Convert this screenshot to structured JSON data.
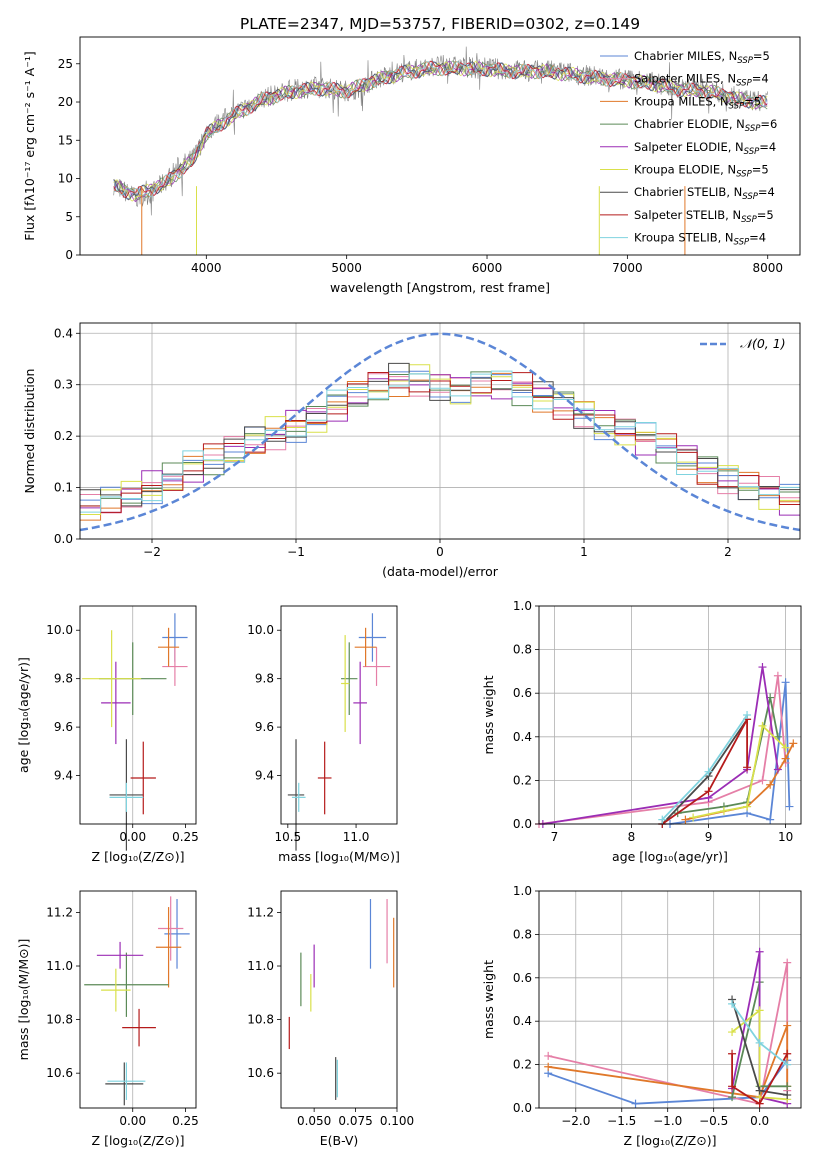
{
  "figure": {
    "title": "PLATE=2347, MJD=53757, FIBERID=0302, z=0.149"
  },
  "models": [
    {
      "name": "Chabrier MILES",
      "nssp": "5",
      "color": "#5b86d6"
    },
    {
      "name": "Salpeter MILES",
      "nssp": "4",
      "color": "#e57fa7"
    },
    {
      "name": "Kroupa MILES",
      "nssp": "5",
      "color": "#e0782a"
    },
    {
      "name": "Chabrier ELODIE",
      "nssp": "6",
      "color": "#5b8a57"
    },
    {
      "name": "Salpeter ELODIE",
      "nssp": "4",
      "color": "#9b2db5"
    },
    {
      "name": "Kroupa ELODIE",
      "nssp": "5",
      "color": "#d9e04a"
    },
    {
      "name": "Chabrier STELIB",
      "nssp": "4",
      "color": "#4a4a4a"
    },
    {
      "name": "Salpeter STELIB",
      "nssp": "5",
      "color": "#b51b1b"
    },
    {
      "name": "Kroupa STELIB",
      "nssp": "4",
      "color": "#7fd3df"
    }
  ],
  "chart_data": [
    {
      "id": "spectrum",
      "type": "line",
      "xlabel": "wavelength [Angstrom, rest frame]",
      "ylabel": "Flux [fλ10⁻¹⁷ erg cm⁻² s⁻¹ A⁻¹]",
      "xlim": [
        3100,
        8230
      ],
      "ylim": [
        0,
        28.5
      ],
      "xticks": [
        "4000",
        "5000",
        "6000",
        "7000",
        "8000"
      ],
      "yticks": [
        "0",
        "5",
        "10",
        "15",
        "20",
        "25"
      ],
      "series": [
        {
          "name": "data",
          "color": "#808080",
          "x": [
            3340,
            3400,
            3500,
            3600,
            3700,
            3800,
            3900,
            3950,
            4000,
            4100,
            4200,
            4300,
            4400,
            4500,
            4600,
            4700,
            4800,
            4900,
            5000,
            5100,
            5200,
            5300,
            5400,
            5500,
            5600,
            5700,
            5800,
            5900,
            6000,
            6100,
            6200,
            6300,
            6400,
            6500,
            6600,
            6700,
            6800,
            6900,
            7000,
            7100,
            7200,
            7300,
            7400,
            7500,
            7600,
            7700,
            7800,
            7900,
            8000
          ],
          "y": [
            9.2,
            8.5,
            7.5,
            8.0,
            9.5,
            11.5,
            12.5,
            14.0,
            16.0,
            17.5,
            18.5,
            19.5,
            20.5,
            21.0,
            21.5,
            21.8,
            22.0,
            21.7,
            21.5,
            21.8,
            23.0,
            23.5,
            24.0,
            24.3,
            24.6,
            24.8,
            24.6,
            24.4,
            24.5,
            24.3,
            24.2,
            24.0,
            24.2,
            24.0,
            23.8,
            23.5,
            23.3,
            23.0,
            23.0,
            22.8,
            22.5,
            22.0,
            21.8,
            21.8,
            21.5,
            21.0,
            20.5,
            20.2,
            20.0
          ]
        },
        {
          "name": "model",
          "color": "#7fd3df",
          "x": [
            3340,
            3500,
            3700,
            3900,
            4000,
            4200,
            4400,
            4600,
            4800,
            5000,
            5200,
            5400,
            5600,
            5800,
            6000,
            6200,
            6400,
            6600,
            6800,
            7000,
            7200,
            7400,
            7600,
            7800,
            8000
          ],
          "y": [
            9.0,
            7.8,
            9.3,
            12.3,
            15.8,
            18.3,
            20.3,
            21.3,
            21.8,
            21.4,
            22.8,
            23.8,
            24.4,
            24.4,
            24.3,
            24.0,
            24.0,
            23.6,
            23.1,
            22.8,
            22.3,
            21.6,
            21.3,
            20.3,
            19.8
          ]
        }
      ]
    },
    {
      "id": "residuals",
      "type": "area",
      "xlabel": "(data-model)/error",
      "ylabel": "Normed distribution",
      "xlim": [
        -2.5,
        2.5
      ],
      "ylim": [
        0,
        0.42
      ],
      "xticks": [
        "−2",
        "−1",
        "0",
        "1",
        "2"
      ],
      "yticks": [
        "0.0",
        "0.1",
        "0.2",
        "0.3",
        "0.4"
      ],
      "grid": true,
      "legend": "top-right",
      "series": [
        {
          "name": "𝒩(0, 1)",
          "style": "dashed",
          "color": "#5b86d6"
        },
        {
          "name": "residual histogram",
          "x": [
            -2.5,
            -2.3,
            -2.1,
            -1.9,
            -1.7,
            -1.5,
            -1.3,
            -1.1,
            -0.9,
            -0.7,
            -0.5,
            -0.3,
            -0.1,
            0.1,
            0.3,
            0.5,
            0.7,
            0.9,
            1.1,
            1.3,
            1.5,
            1.7,
            1.9,
            2.1,
            2.3,
            2.5
          ],
          "y": [
            0.06,
            0.07,
            0.09,
            0.11,
            0.14,
            0.16,
            0.19,
            0.21,
            0.23,
            0.26,
            0.29,
            0.31,
            0.31,
            0.29,
            0.3,
            0.3,
            0.28,
            0.26,
            0.23,
            0.21,
            0.19,
            0.16,
            0.13,
            0.11,
            0.09,
            0.07
          ]
        }
      ]
    },
    {
      "id": "age-vs-Z",
      "type": "scatter",
      "xlabel": "Z [log₁₀(Z/Z⊙)]",
      "ylabel": "age  [log₁₀(age/yr)]",
      "xticks": [
        "0.00",
        "0.25"
      ],
      "yticks": [
        "9.4",
        "9.6",
        "9.8",
        "10.0"
      ],
      "xlim": [
        -0.25,
        0.3
      ],
      "ylim": [
        9.2,
        10.1
      ],
      "points": [
        {
          "x": 0.2,
          "y": 9.97,
          "xerr": 0.06,
          "yerr": 0.1
        },
        {
          "x": 0.2,
          "y": 9.85,
          "xerr": 0.06,
          "yerr": 0.08
        },
        {
          "x": 0.17,
          "y": 9.93,
          "xerr": 0.05,
          "yerr": 0.08
        },
        {
          "x": 0.0,
          "y": 9.8,
          "xerr": 0.16,
          "yerr": 0.15
        },
        {
          "x": -0.08,
          "y": 9.7,
          "xerr": 0.07,
          "yerr": 0.17
        },
        {
          "x": -0.1,
          "y": 9.8,
          "xerr": 0.14,
          "yerr": 0.2
        },
        {
          "x": -0.03,
          "y": 9.32,
          "xerr": 0.08,
          "yerr": 0.23
        },
        {
          "x": 0.05,
          "y": 9.39,
          "xerr": 0.06,
          "yerr": 0.15
        },
        {
          "x": -0.03,
          "y": 9.31,
          "xerr": 0.08,
          "yerr": 0.06
        }
      ]
    },
    {
      "id": "age-vs-mass",
      "type": "scatter",
      "xlabel": "mass [log₁₀(M/M⊙)]",
      "ylabel": "",
      "xticks": [
        "10.5",
        "11.0"
      ],
      "yticks": [
        "9.4",
        "9.6",
        "9.8",
        "10.0"
      ],
      "xlim": [
        10.45,
        11.3
      ],
      "ylim": [
        9.2,
        10.1
      ],
      "points": [
        {
          "x": 11.12,
          "y": 9.97,
          "xerr": 0.1,
          "yerr": 0.1
        },
        {
          "x": 11.15,
          "y": 9.85,
          "xerr": 0.1,
          "yerr": 0.08
        },
        {
          "x": 11.07,
          "y": 9.93,
          "xerr": 0.08,
          "yerr": 0.08
        },
        {
          "x": 10.95,
          "y": 9.8,
          "xerr": 0.06,
          "yerr": 0.15
        },
        {
          "x": 11.03,
          "y": 9.7,
          "xerr": 0.05,
          "yerr": 0.17
        },
        {
          "x": 10.92,
          "y": 9.78,
          "xerr": 0.03,
          "yerr": 0.2
        },
        {
          "x": 10.56,
          "y": 9.32,
          "xerr": 0.06,
          "yerr": 0.23
        },
        {
          "x": 10.77,
          "y": 9.39,
          "xerr": 0.05,
          "yerr": 0.15
        },
        {
          "x": 10.58,
          "y": 9.31,
          "xerr": 0.05,
          "yerr": 0.06
        }
      ]
    },
    {
      "id": "weight-vs-age",
      "type": "line",
      "xlabel": "age  [log₁₀(age/yr)]",
      "ylabel": "mass weight",
      "xticks": [
        "7",
        "8",
        "9",
        "10"
      ],
      "yticks": [
        "0.0",
        "0.2",
        "0.4",
        "0.6",
        "0.8",
        "1.0"
      ],
      "xlim": [
        6.8,
        10.2
      ],
      "ylim": [
        0,
        1
      ],
      "grid": true,
      "series": [
        {
          "x": [
            8.5,
            9.5,
            9.8,
            10.0,
            10.05
          ],
          "y": [
            0.0,
            0.05,
            0.02,
            0.65,
            0.08
          ]
        },
        {
          "x": [
            6.8,
            9.0,
            9.7,
            9.9,
            10.0
          ],
          "y": [
            0.0,
            0.1,
            0.2,
            0.68,
            0.28
          ]
        },
        {
          "x": [
            8.7,
            9.5,
            9.8,
            10.0,
            10.1
          ],
          "y": [
            0.02,
            0.08,
            0.18,
            0.3,
            0.37
          ]
        },
        {
          "x": [
            8.6,
            9.2,
            9.5,
            9.8,
            9.9
          ],
          "y": [
            0.05,
            0.08,
            0.1,
            0.58,
            0.4
          ]
        },
        {
          "x": [
            6.85,
            9.0,
            9.5,
            9.7,
            9.9
          ],
          "y": [
            0.0,
            0.12,
            0.25,
            0.72,
            0.25
          ]
        },
        {
          "x": [
            8.8,
            9.2,
            9.5,
            9.7,
            10.0
          ],
          "y": [
            0.03,
            0.06,
            0.08,
            0.45,
            0.35
          ]
        },
        {
          "x": [
            8.4,
            9.0,
            9.5
          ],
          "y": [
            0.0,
            0.22,
            0.48
          ]
        },
        {
          "x": [
            8.4,
            9.0,
            9.5,
            9.5
          ],
          "y": [
            0.0,
            0.15,
            0.48,
            0.26
          ]
        },
        {
          "x": [
            8.4,
            9.0,
            9.5
          ],
          "y": [
            0.02,
            0.24,
            0.5
          ]
        }
      ]
    },
    {
      "id": "mass-vs-Z",
      "type": "scatter",
      "xlabel": "Z [log₁₀(Z/Z⊙)]",
      "ylabel": "mass [log₁₀(M/M⊙)]",
      "xticks": [
        "0.00",
        "0.25"
      ],
      "yticks": [
        "10.6",
        "10.8",
        "11.0",
        "11.2"
      ],
      "xlim": [
        -0.25,
        0.3
      ],
      "ylim": [
        10.47,
        11.28
      ],
      "points": [
        {
          "x": 0.21,
          "y": 11.12,
          "xerr": 0.06,
          "yerr": 0.13
        },
        {
          "x": 0.18,
          "y": 11.14,
          "xerr": 0.06,
          "yerr": 0.12
        },
        {
          "x": 0.17,
          "y": 11.07,
          "xerr": 0.06,
          "yerr": 0.15
        },
        {
          "x": -0.03,
          "y": 10.93,
          "xerr": 0.2,
          "yerr": 0.12
        },
        {
          "x": -0.06,
          "y": 11.04,
          "xerr": 0.11,
          "yerr": 0.05
        },
        {
          "x": -0.08,
          "y": 10.91,
          "xerr": 0.07,
          "yerr": 0.08
        },
        {
          "x": -0.04,
          "y": 10.56,
          "xerr": 0.09,
          "yerr": 0.08
        },
        {
          "x": 0.03,
          "y": 10.77,
          "xerr": 0.08,
          "yerr": 0.07
        },
        {
          "x": -0.03,
          "y": 10.57,
          "xerr": 0.09,
          "yerr": 0.07
        }
      ]
    },
    {
      "id": "mass-vs-EBV",
      "type": "scatter",
      "xlabel": "E(B-V)",
      "ylabel": "",
      "xticks": [
        "0.050",
        "0.075",
        "0.100"
      ],
      "yticks": [
        "10.6",
        "10.8",
        "11.0",
        "11.2"
      ],
      "xlim": [
        0.03,
        0.1
      ],
      "ylim": [
        10.47,
        11.28
      ],
      "points": [
        {
          "x": 0.084,
          "y": 11.12,
          "yerr": 0.13
        },
        {
          "x": 0.094,
          "y": 11.13,
          "yerr": 0.12
        },
        {
          "x": 0.098,
          "y": 11.05,
          "yerr": 0.13
        },
        {
          "x": 0.042,
          "y": 10.95,
          "yerr": 0.1
        },
        {
          "x": 0.05,
          "y": 11.0,
          "yerr": 0.08
        },
        {
          "x": 0.048,
          "y": 10.9,
          "yerr": 0.07
        },
        {
          "x": 0.063,
          "y": 10.58,
          "yerr": 0.08
        },
        {
          "x": 0.035,
          "y": 10.75,
          "yerr": 0.06
        },
        {
          "x": 0.064,
          "y": 10.58,
          "yerr": 0.07
        }
      ]
    },
    {
      "id": "weight-vs-Z",
      "type": "line",
      "xlabel": "Z [log₁₀(Z/Z⊙)]",
      "ylabel": "mass weight",
      "xticks": [
        "−2.0",
        "−1.5",
        "−1.0",
        "−0.5",
        "0.0"
      ],
      "yticks": [
        "0.0",
        "0.2",
        "0.4",
        "0.6",
        "0.8",
        "1.0"
      ],
      "xlim": [
        -2.4,
        0.45
      ],
      "ylim": [
        0,
        1
      ],
      "grid": true,
      "series": [
        {
          "x": [
            -2.3,
            -1.35,
            0.0,
            0.3
          ],
          "y": [
            0.16,
            0.02,
            0.05,
            0.22
          ]
        },
        {
          "x": [
            -2.3,
            0.0,
            0.3,
            0.3
          ],
          "y": [
            0.24,
            0.02,
            0.67,
            0.08
          ]
        },
        {
          "x": [
            -2.3,
            0.0,
            0.3,
            0.3
          ],
          "y": [
            0.19,
            0.05,
            0.38,
            0.1
          ]
        },
        {
          "x": [
            -0.3,
            0.0,
            0.0,
            0.3
          ],
          "y": [
            0.05,
            0.58,
            0.1,
            0.1
          ]
        },
        {
          "x": [
            -0.3,
            0.0,
            0.0,
            0.3
          ],
          "y": [
            0.09,
            0.72,
            0.05,
            0.02
          ]
        },
        {
          "x": [
            -0.3,
            0.0,
            0.0,
            0.3
          ],
          "y": [
            0.35,
            0.45,
            0.05,
            0.04
          ]
        },
        {
          "x": [
            -0.3,
            0.0,
            0.3
          ],
          "y": [
            0.5,
            0.08,
            0.06
          ]
        },
        {
          "x": [
            -0.3,
            -0.3,
            0.0,
            0.3
          ],
          "y": [
            0.25,
            0.1,
            0.02,
            0.25
          ]
        },
        {
          "x": [
            -0.3,
            0.0,
            0.3
          ],
          "y": [
            0.48,
            0.3,
            0.2
          ]
        }
      ]
    }
  ]
}
